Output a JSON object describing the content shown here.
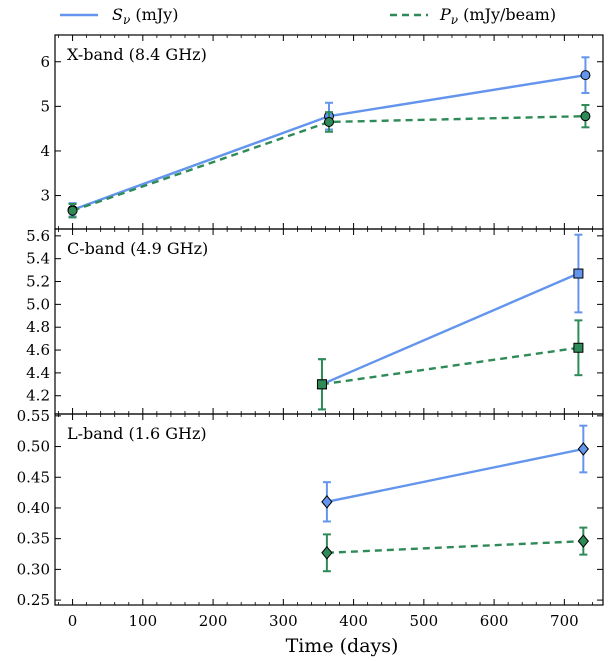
{
  "chart_data": {
    "type": "line",
    "xlabel": "Time (days)",
    "xlim": [
      -25,
      755
    ],
    "xticks": [
      0,
      100,
      200,
      300,
      400,
      500,
      600,
      700
    ],
    "legend": {
      "placement": "top",
      "entries": [
        {
          "symbol": "S",
          "subscript": "ν",
          "unit": " (mJy)",
          "color": "#6495ED",
          "dash": "solid"
        },
        {
          "symbol": "P",
          "subscript": "ν",
          "unit": " (mJy/beam)",
          "color": "#2E8B57",
          "dash": "dashed"
        }
      ]
    },
    "colors": {
      "S": "#6495ED",
      "P": "#2E8B57"
    },
    "panels": [
      {
        "label": "X-band (8.4 GHz)",
        "marker": "circle",
        "ylim": [
          2.25,
          6.6
        ],
        "yticks": [
          3,
          4,
          5,
          6
        ],
        "ytick_labels": [
          "3",
          "4",
          "5",
          "6"
        ],
        "series": [
          {
            "key": "S",
            "points": [
              {
                "x": 0,
                "y": 2.68,
                "err": 0.15
              },
              {
                "x": 365,
                "y": 4.78,
                "err": 0.3
              },
              {
                "x": 730,
                "y": 5.7,
                "err": 0.4
              }
            ]
          },
          {
            "key": "P",
            "points": [
              {
                "x": 0,
                "y": 2.66,
                "err": 0.15
              },
              {
                "x": 365,
                "y": 4.65,
                "err": 0.22
              },
              {
                "x": 730,
                "y": 4.78,
                "err": 0.25
              }
            ]
          }
        ]
      },
      {
        "label": "C-band (4.9 GHz)",
        "marker": "square",
        "ylim": [
          4.04,
          5.66
        ],
        "yticks": [
          4.2,
          4.4,
          4.6,
          4.8,
          5.0,
          5.2,
          5.4,
          5.6
        ],
        "ytick_labels": [
          "4.2",
          "4.4",
          "4.6",
          "4.8",
          "5.0",
          "5.2",
          "5.4",
          "5.6"
        ],
        "series": [
          {
            "key": "S",
            "points": [
              {
                "x": 355,
                "y": 4.3,
                "err": 0.22
              },
              {
                "x": 720,
                "y": 5.27,
                "err": 0.34
              }
            ]
          },
          {
            "key": "P",
            "points": [
              {
                "x": 355,
                "y": 4.3,
                "err": 0.22
              },
              {
                "x": 720,
                "y": 4.62,
                "err": 0.24
              }
            ]
          }
        ]
      },
      {
        "label": "L-band (1.6 GHz)",
        "marker": "diamond",
        "ylim": [
          0.242,
          0.553
        ],
        "yticks": [
          0.25,
          0.3,
          0.35,
          0.4,
          0.45,
          0.5,
          0.55
        ],
        "ytick_labels": [
          "0.25",
          "0.30",
          "0.35",
          "0.40",
          "0.45",
          "0.50",
          "0.55"
        ],
        "series": [
          {
            "key": "S",
            "points": [
              {
                "x": 362,
                "y": 0.41,
                "err": 0.032
              },
              {
                "x": 727,
                "y": 0.496,
                "err": 0.038
              }
            ]
          },
          {
            "key": "P",
            "points": [
              {
                "x": 362,
                "y": 0.327,
                "err": 0.03
              },
              {
                "x": 727,
                "y": 0.346,
                "err": 0.022
              }
            ]
          }
        ]
      }
    ]
  }
}
